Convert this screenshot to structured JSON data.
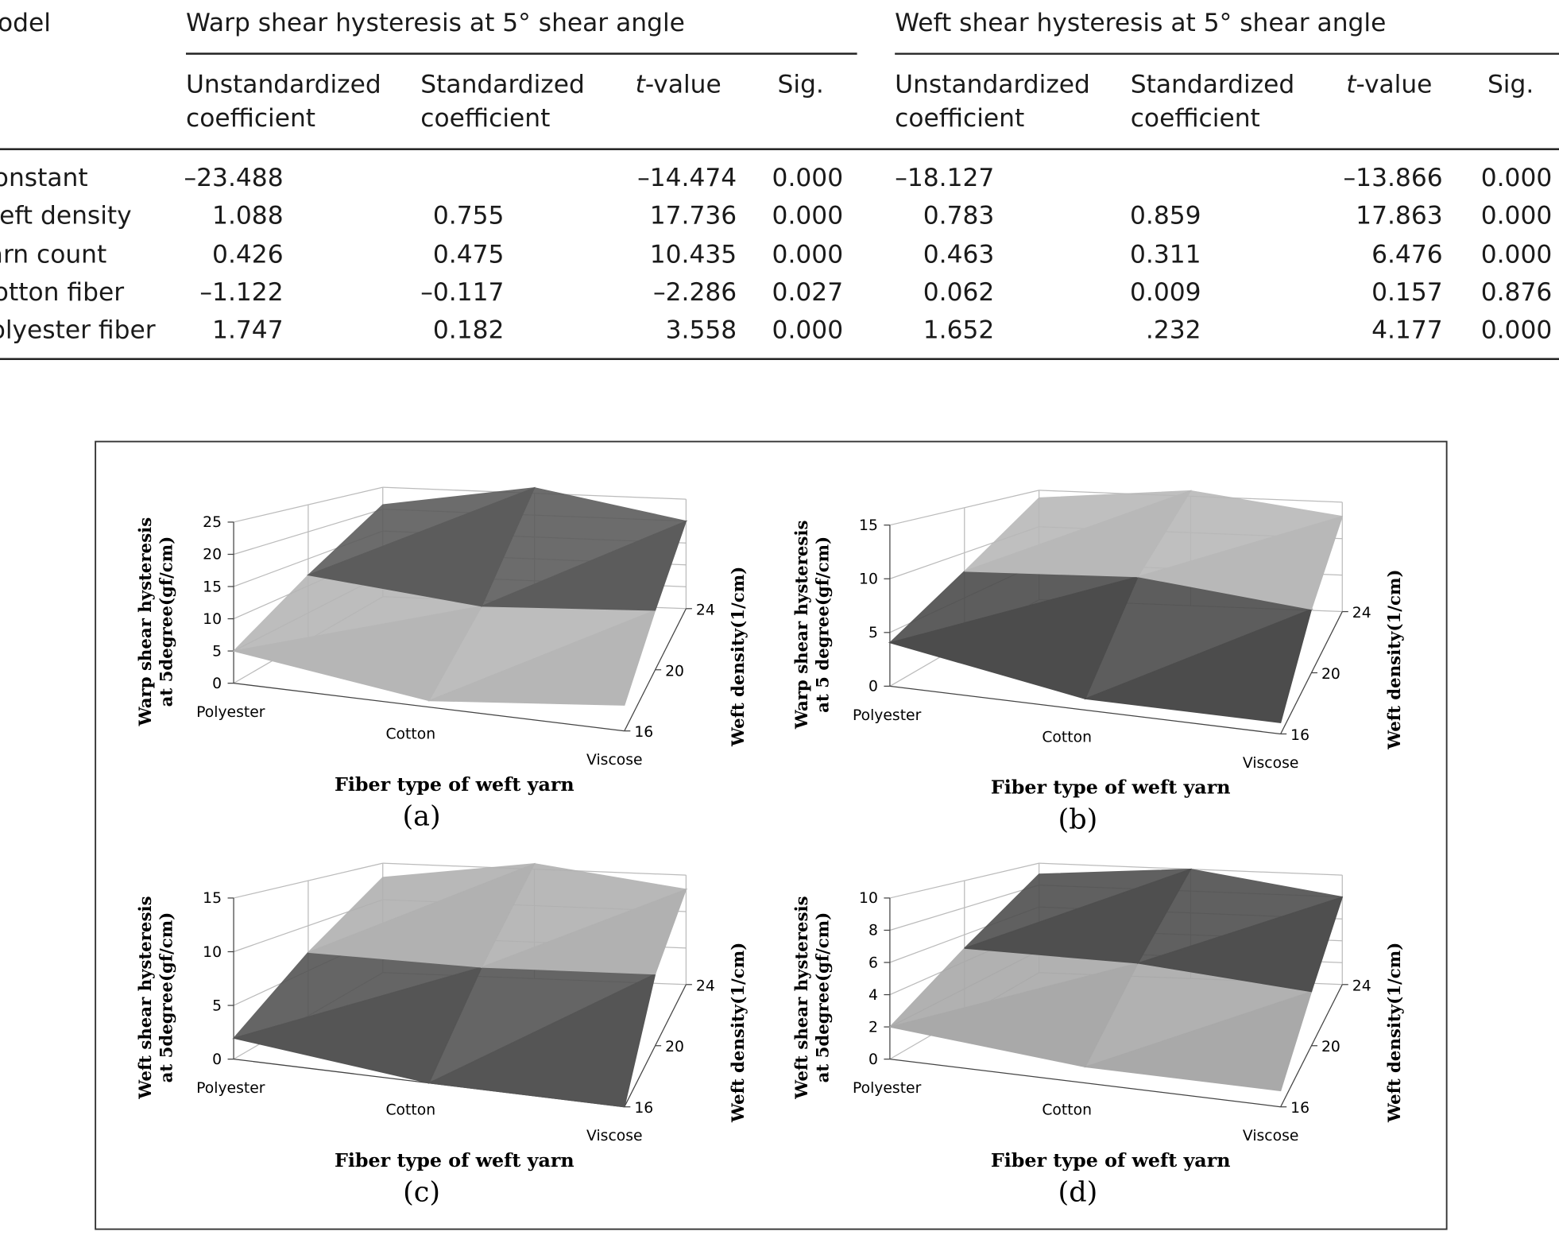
{
  "table": {
    "header": {
      "model": "Model",
      "groups": [
        "Warp shear hysteresis at 5° shear angle",
        "Weft shear hysteresis at 5° shear angle"
      ],
      "columns": [
        "Unstandardized coefficient",
        "Standardized coefficient",
        "t-value",
        "Sig.",
        "Unstandardized coefficient",
        "Standardized coefficient",
        "t-value",
        "Sig."
      ]
    },
    "rows": [
      [
        "Constant",
        "–23.488",
        null,
        "–14.474",
        "0.000",
        "–18.127",
        null,
        "–13.866",
        "0.000"
      ],
      [
        "Weft density",
        "1.088",
        "0.755",
        "17.736",
        "0.000",
        "0.783",
        "0.859",
        "17.863",
        "0.000"
      ],
      [
        "Yarn count",
        "0.426",
        "0.475",
        "10.435",
        "0.000",
        "0.463",
        "0.311",
        "6.476",
        "0.000"
      ],
      [
        "Cotton fiber",
        "–1.122",
        "–0.117",
        "–2.286",
        "0.027",
        "0.062",
        "0.009",
        "0.157",
        "0.876"
      ],
      [
        "Polyester fiber",
        "1.747",
        "0.182",
        "3.558",
        "0.000",
        "1.652",
        ".232",
        "4.177",
        "0.000"
      ]
    ]
  },
  "figure": {
    "panels": [
      {
        "y_label": [
          "Warp shear hysteresis",
          "at 5degree(gf/cm)"
        ],
        "y_ticks": [
          0,
          5,
          10,
          15,
          20,
          25
        ],
        "x_categories": [
          "Polyester",
          "Cotton",
          "Viscose"
        ],
        "depth_ticks": [
          16,
          20,
          24
        ],
        "depth_label": "Weft density(1/cm)",
        "x_label": "Fiber type of weft yarn",
        "caption": "(a)"
      },
      {
        "y_label": [
          "Warp shear hysteresis",
          "at 5 degree(gf/cm)"
        ],
        "y_ticks": [
          0,
          5,
          10,
          15
        ],
        "x_categories": [
          "Polyester",
          "Cotton",
          "Viscose"
        ],
        "depth_ticks": [
          16,
          20,
          24
        ],
        "depth_label": "Weft density(1/cm)",
        "x_label": "Fiber type of weft yarn",
        "caption": "(b)"
      },
      {
        "y_label": [
          "Weft shear hysteresis",
          "at 5degree(gf/cm)"
        ],
        "y_ticks": [
          0,
          5,
          10,
          15
        ],
        "x_categories": [
          "Polyester",
          "Cotton",
          "Viscose"
        ],
        "depth_ticks": [
          16,
          20,
          24
        ],
        "depth_label": "Weft density(1/cm)",
        "x_label": "Fiber type of weft yarn",
        "caption": "(c)"
      },
      {
        "y_label": [
          "Weft shear hysteresis",
          "at 5degree(gf/cm)"
        ],
        "y_ticks": [
          0,
          2,
          4,
          6,
          8,
          10
        ],
        "x_categories": [
          "Polyester",
          "Cotton",
          "Viscose"
        ],
        "depth_ticks": [
          16,
          20,
          24
        ],
        "depth_label": "Weft density(1/cm)",
        "x_label": "Fiber type of weft yarn",
        "caption": "(d)"
      }
    ]
  }
}
